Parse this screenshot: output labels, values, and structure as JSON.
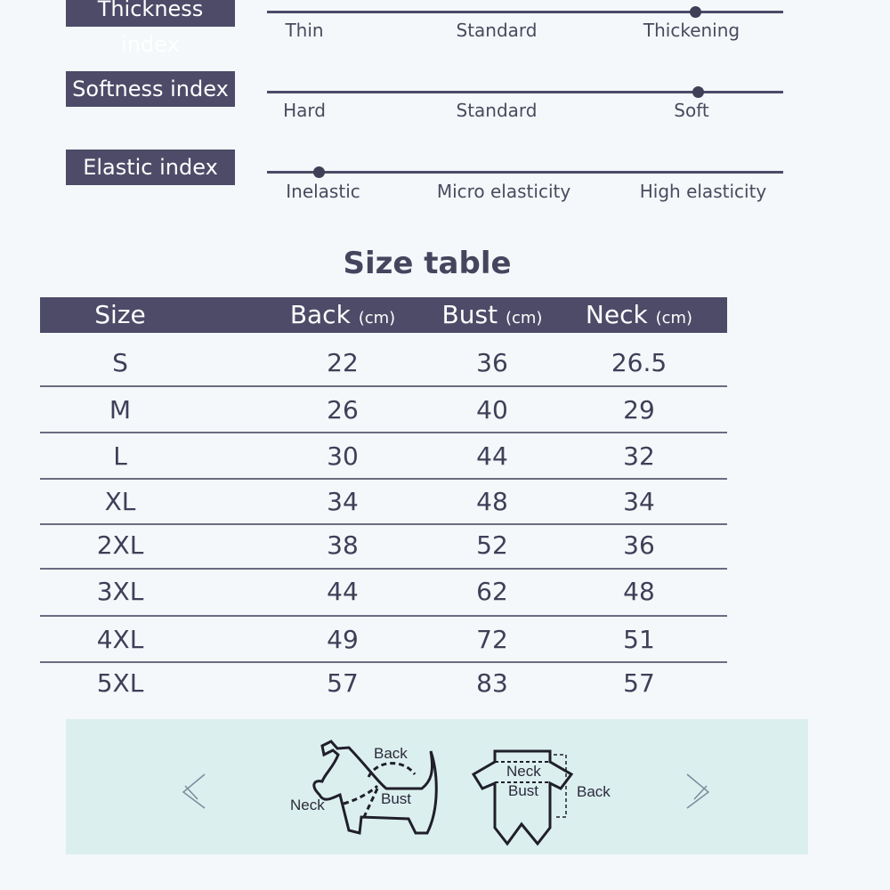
{
  "indices": [
    {
      "label": "Thickness index",
      "options": [
        "Thin",
        "Standard",
        "Thickening"
      ],
      "selected": "Thickening",
      "level": 0.83
    },
    {
      "label": "Softness index",
      "options": [
        "Hard",
        "Standard",
        "Soft"
      ],
      "selected": "Soft",
      "level": 0.835
    },
    {
      "label": "Elastic index",
      "options": [
        "Inelastic",
        "Micro elasticity",
        "High elasticity"
      ],
      "selected": "Inelastic",
      "level": 0.1
    }
  ],
  "size_table": {
    "title": "Size table",
    "headers": [
      {
        "name": "Size",
        "unit": ""
      },
      {
        "name": "Back",
        "unit": "(cm)"
      },
      {
        "name": "Bust",
        "unit": "(cm)"
      },
      {
        "name": "Neck",
        "unit": "(cm)"
      }
    ],
    "rows": [
      [
        "S",
        "22",
        "36",
        "26.5"
      ],
      [
        "M",
        "26",
        "40",
        "29"
      ],
      [
        "L",
        "30",
        "44",
        "32"
      ],
      [
        "XL",
        "34",
        "48",
        "34"
      ],
      [
        "2XL",
        "38",
        "52",
        "36"
      ],
      [
        "3XL",
        "44",
        "62",
        "48"
      ],
      [
        "4XL",
        "49",
        "72",
        "51"
      ],
      [
        "5XL",
        "57",
        "83",
        "57"
      ]
    ]
  },
  "diagram": {
    "dog_labels": {
      "back": "Back",
      "neck": "Neck",
      "bust": "Bust"
    },
    "garment_labels": {
      "neck": "Neck",
      "bust": "Bust",
      "back": "Back"
    },
    "prev_icon": "chevron-left-icon",
    "next_icon": "chevron-right-icon"
  },
  "colors": {
    "accent": "#4d4b68",
    "panel": "#dcefef",
    "background": "#f4f8fa"
  }
}
